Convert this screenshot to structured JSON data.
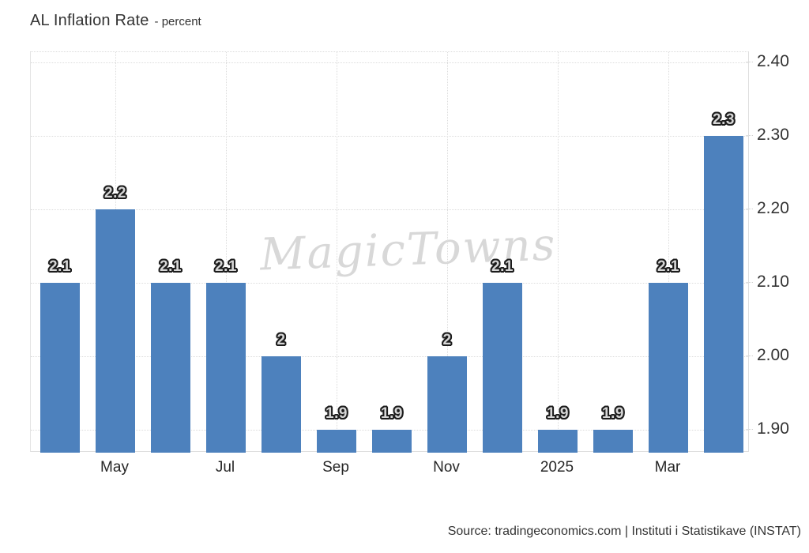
{
  "header": {
    "title": "AL Inflation Rate",
    "subtitle": "- percent"
  },
  "watermark": {
    "text": "MagicTowns"
  },
  "footer": {
    "source": "Source: tradingeconomics.com | Instituti i Statistikave (INSTAT)"
  },
  "chart_data": {
    "type": "bar",
    "title": "AL Inflation Rate",
    "ylabel": "percent",
    "values": [
      2.1,
      2.2,
      2.1,
      2.1,
      2,
      1.9,
      1.9,
      2,
      2.1,
      1.9,
      1.9,
      2.1,
      2.3
    ],
    "x_ticks": [
      {
        "label": "May",
        "bar_index": 1
      },
      {
        "label": "Jul",
        "bar_index": 3
      },
      {
        "label": "Sep",
        "bar_index": 5
      },
      {
        "label": "Nov",
        "bar_index": 7
      },
      {
        "label": "2025",
        "bar_index": 9
      },
      {
        "label": "Mar",
        "bar_index": 11
      }
    ],
    "y_ticks": [
      {
        "label": "2.40",
        "value": 2.4
      },
      {
        "label": "2.30",
        "value": 2.3
      },
      {
        "label": "2.20",
        "value": 2.2
      },
      {
        "label": "2.10",
        "value": 2.1
      },
      {
        "label": "2.00",
        "value": 2.0
      },
      {
        "label": "1.90",
        "value": 1.9
      }
    ],
    "ylim": [
      1.869,
      2.414
    ],
    "grid": true,
    "legend": "none",
    "bar_color": "#4d81bd",
    "bar_label_fill": "#d6d6d6",
    "bar_label_outline": "#1c1c1c"
  }
}
